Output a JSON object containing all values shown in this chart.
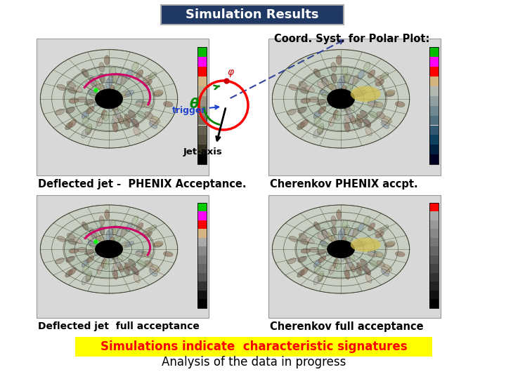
{
  "title": "Simulation Results",
  "title_bg": "#1F3864",
  "title_color": "white",
  "coord_title": "Coord. Syst. for Polar Plot:",
  "label_tl": "Deflected jet -  PHENIX Acceptance.",
  "label_tr": "Cherenkov PHENIX accpt.",
  "label_bl": "Deflected jet  full acceptance",
  "label_br": "Cherenkov full acceptance",
  "bottom_highlight": "yellow",
  "bottom_text1": "Simulations indicate  characteristic signatures",
  "bottom_text1_color": "red",
  "bottom_text2": "Analysis of the data in progress",
  "bottom_text2_color": "black",
  "bg_color": "white",
  "panel_bg": "#d8d8d8",
  "colorbar_colors_tl": [
    "black",
    "#00bb00",
    "#ff00ff",
    "#ff0000",
    "#d4b870",
    "#b0b0b0",
    "#888888",
    "#666666",
    "#444444",
    "#222222",
    "#111111",
    "#000000"
  ],
  "colorbar_colors_tr": [
    "black",
    "#00bb00",
    "#ff00ff",
    "#ff0000",
    "#d4b870",
    "#b0c0c0",
    "#a0b0b0",
    "#888899",
    "#666677",
    "#444455",
    "#222233",
    "#000011"
  ],
  "colorbar_colors_bl": [
    "#00cc00",
    "#ff00ff",
    "#ff0000",
    "#d4b870",
    "#aaaaaa",
    "#888888",
    "#666666",
    "#555555",
    "#333333",
    "#222222",
    "#111111",
    "#000000"
  ],
  "colorbar_colors_br": [
    "red",
    "#aaaaaa",
    "#888888",
    "#777777",
    "#666666",
    "#555555",
    "#444444",
    "#333333",
    "#222222",
    "#111111",
    "#000000",
    "#000000"
  ],
  "disk_color": "#b8c8c0",
  "disk_grid_color": "#555544",
  "coord_text_theta": "θ",
  "coord_text_phi": "φ",
  "coord_text_trigger": "trigger",
  "coord_text_jetaxis": "Jet-axis"
}
